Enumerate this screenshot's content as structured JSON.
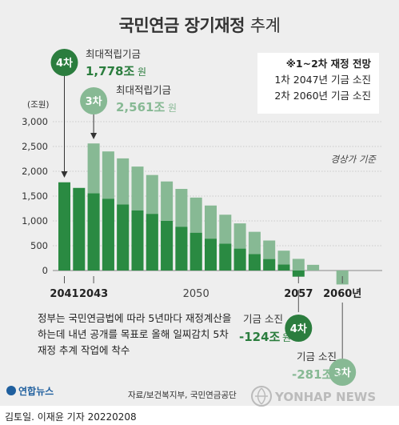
{
  "title": {
    "bold": "국민연금 장기재정",
    "light": "추계"
  },
  "info_box": {
    "heading": "※1~2차 재정 전망",
    "line1": "1차 2047년 기금 소진",
    "line2": "2차 2060년 기금 소진"
  },
  "annotations": {
    "r4_badge": "4차",
    "r4_label": "최대적립기금",
    "r4_value": "1,778조",
    "r4_unit": "원",
    "r3_badge": "3차",
    "r3_label": "최대적립기금",
    "r3_value": "2,561조",
    "r3_unit": "원",
    "basis": "경상가 기준",
    "deplete4_label": "기금 소진",
    "deplete4_value": "-124조",
    "deplete4_unit": "원",
    "deplete4_badge": "4차",
    "deplete3_label": "기금 소진",
    "deplete3_value": "-281조",
    "deplete3_unit": "원",
    "deplete3_badge": "3차"
  },
  "note_lines": [
    "정부는 국민연금법에 따라 5년마다 재정계산을",
    "하는데 내년 공개를 목표로 올해 일찌감치 5차",
    "재정 추계 작업에 착수"
  ],
  "source": "자료/보건복지부, 국민연금공단",
  "byline": "김토일. 이재윤 기자 20220208",
  "logo_left": "연합뉴스",
  "logo_right": "YONHAP NEWS",
  "colors": {
    "dark_green": "#2a8a42",
    "light_green": "#87b994",
    "badge_green": "#2b7d3e",
    "background": "#eeeeee"
  },
  "chart_data": {
    "type": "bar",
    "yunit": "(조원)",
    "ylim": [
      -300,
      3000
    ],
    "yticks": [
      0,
      500,
      1000,
      1500,
      2000,
      2500,
      3000
    ],
    "ytick_labels": [
      "0",
      "500",
      "1,000",
      "1,500",
      "2,000",
      "2,500",
      "3,000"
    ],
    "xtick_labels": [
      {
        "label": "2041",
        "year": 2041,
        "bold": true
      },
      {
        "label": "2043",
        "year": 2043,
        "bold": true
      },
      {
        "label": "2050",
        "year": 2050,
        "bold": false
      },
      {
        "label": "2057",
        "year": 2057,
        "bold": true
      },
      {
        "label": "2060년",
        "year": 2060,
        "bold": true
      }
    ],
    "years": [
      2041,
      2042,
      2043,
      2044,
      2045,
      2046,
      2047,
      2048,
      2049,
      2050,
      2051,
      2052,
      2053,
      2054,
      2055,
      2056,
      2057,
      2058,
      2059,
      2060
    ],
    "series": [
      {
        "name": "4차",
        "values": [
          1778,
          1665,
          1555,
          1445,
          1330,
          1210,
          1140,
          1000,
          880,
          760,
          640,
          540,
          440,
          330,
          230,
          120,
          -124,
          null,
          null,
          null
        ]
      },
      {
        "name": "3차",
        "values": [
          null,
          null,
          2561,
          2400,
          2260,
          2095,
          1925,
          1795,
          1645,
          1470,
          1310,
          1125,
          950,
          780,
          605,
          400,
          235,
          115,
          0,
          -281
        ]
      }
    ]
  }
}
